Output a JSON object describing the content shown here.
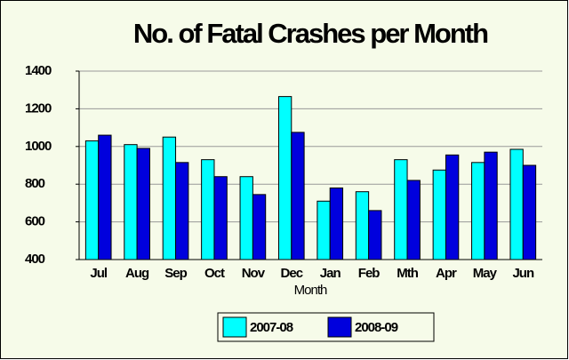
{
  "chart_data": {
    "type": "bar",
    "title": "No. of Fatal Crashes per Month",
    "x_label": "Month",
    "categories": [
      "Jul",
      "Aug",
      "Sep",
      "Oct",
      "Nov",
      "Dec",
      "Jan",
      "Feb",
      "Mth",
      "Apr",
      "May",
      "Jun"
    ],
    "series": [
      {
        "name": "2007-08",
        "color": "#00ffff",
        "values": [
          1030,
          1010,
          1050,
          930,
          840,
          1265,
          710,
          760,
          930,
          875,
          915,
          985
        ]
      },
      {
        "name": "2008-09",
        "color": "#0000dd",
        "values": [
          1060,
          990,
          915,
          840,
          745,
          1075,
          780,
          660,
          820,
          955,
          970,
          900
        ]
      }
    ],
    "ylim": [
      400,
      1400
    ],
    "yticks": [
      400,
      600,
      800,
      1000,
      1200,
      1400
    ],
    "grid": true,
    "legend": "bottom"
  }
}
